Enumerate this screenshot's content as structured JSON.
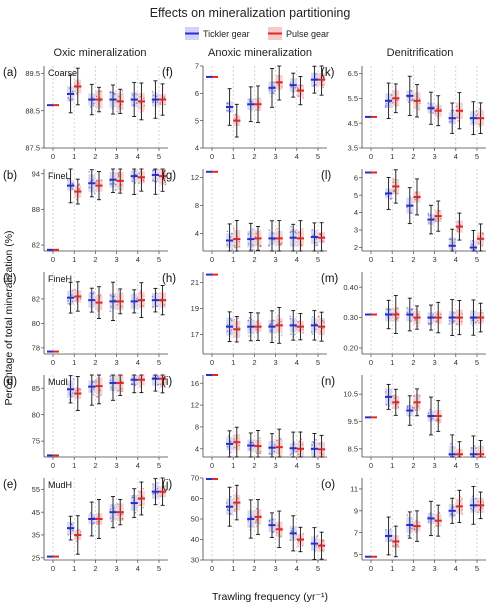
{
  "figure": {
    "title": "Effects on mineralization partitioning",
    "legend": [
      {
        "label": "Tickler gear",
        "color": "#2b2bd6"
      },
      {
        "label": "Pulse gear",
        "color": "#e0262a"
      }
    ],
    "column_titles": [
      "Oxic mineralization",
      "Anoxic mineralization",
      "Denitrification"
    ],
    "row_labels": [
      "Coarse",
      "FineL",
      "FineH",
      "MudL",
      "MudH"
    ],
    "xlabel": "Trawling frequency (yr⁻¹)",
    "ylabel": "Percentage of total mineralization (%)"
  },
  "chart_data": [
    {
      "panel": "(a)",
      "row": "Coarse",
      "column": "Oxic mineralization",
      "type": "box",
      "ylim": [
        87.5,
        89.7
      ],
      "yticks": [
        "87.5",
        "88.5",
        "89.5"
      ],
      "xticks": [
        "0",
        "1",
        "2",
        "3",
        "4",
        "5"
      ],
      "baseline": 88.65,
      "tickler": [
        88.95,
        88.8,
        88.8,
        88.8,
        88.8
      ],
      "pulse": [
        89.15,
        88.8,
        88.75,
        88.75,
        88.8
      ]
    },
    {
      "panel": "(f)",
      "row": "Coarse",
      "column": "Anoxic mineralization",
      "type": "box",
      "ylim": [
        4,
        7
      ],
      "yticks": [
        "4",
        "5",
        "6",
        "7"
      ],
      "xticks": [
        "0",
        "1",
        "2",
        "3",
        "4",
        "5"
      ],
      "baseline": 6.6,
      "tickler": [
        5.5,
        5.6,
        6.2,
        6.3,
        6.5
      ],
      "pulse": [
        5.0,
        5.6,
        6.4,
        6.1,
        6.5
      ]
    },
    {
      "panel": "(k)",
      "row": "Coarse",
      "column": "Denitrification",
      "type": "box",
      "ylim": [
        3.5,
        6.8
      ],
      "yticks": [
        "3.5",
        "4.5",
        "5.5",
        "6.5"
      ],
      "xticks": [
        "0",
        "1",
        "2",
        "3",
        "4",
        "5"
      ],
      "baseline": 4.75,
      "tickler": [
        5.4,
        5.6,
        5.1,
        4.7,
        4.7
      ],
      "pulse": [
        5.5,
        5.4,
        5.0,
        5.0,
        4.7
      ]
    },
    {
      "panel": "(b)",
      "row": "FineL",
      "column": "Oxic mineralization",
      "type": "box",
      "ylim": [
        81,
        94.8
      ],
      "yticks": [
        "82",
        "88",
        "94"
      ],
      "xticks": [
        "0",
        "1",
        "2",
        "3",
        "4",
        "5"
      ],
      "baseline": 81.2,
      "tickler": [
        92.0,
        92.4,
        93.0,
        93.6,
        93.8
      ],
      "pulse": [
        91.0,
        92.0,
        92.8,
        93.4,
        93.6
      ]
    },
    {
      "panel": "(g)",
      "row": "FineL",
      "column": "Anoxic mineralization",
      "type": "box",
      "ylim": [
        1.5,
        13.2
      ],
      "yticks": [
        "4",
        "8",
        "12"
      ],
      "xticks": [
        "0",
        "1",
        "2",
        "3",
        "4",
        "5"
      ],
      "baseline": 12.8,
      "tickler": [
        3.0,
        3.2,
        3.3,
        3.4,
        3.5
      ],
      "pulse": [
        3.2,
        3.3,
        3.3,
        3.3,
        3.4
      ]
    },
    {
      "panel": "(l)",
      "row": "FineL",
      "column": "Denitrification",
      "type": "box",
      "ylim": [
        1.8,
        6.5
      ],
      "yticks": [
        "2",
        "3",
        "4",
        "5",
        "6"
      ],
      "xticks": [
        "0",
        "1",
        "2",
        "3",
        "4",
        "5"
      ],
      "baseline": 6.3,
      "tickler": [
        5.1,
        4.4,
        3.6,
        2.1,
        2.0
      ],
      "pulse": [
        5.5,
        4.9,
        3.8,
        3.2,
        2.5
      ]
    },
    {
      "panel": "(c)",
      "row": "FineH",
      "column": "Oxic mineralization",
      "type": "box",
      "ylim": [
        77.5,
        84.2
      ],
      "yticks": [
        "78",
        "80",
        "82"
      ],
      "xticks": [
        "0",
        "1",
        "2",
        "3",
        "4",
        "5"
      ],
      "baseline": 77.7,
      "tickler": [
        82.1,
        81.9,
        81.8,
        81.8,
        81.9
      ],
      "pulse": [
        82.2,
        81.7,
        81.8,
        81.9,
        81.9
      ]
    },
    {
      "panel": "(h)",
      "row": "FineH",
      "column": "Anoxic mineralization",
      "type": "box",
      "ylim": [
        15.5,
        21.8
      ],
      "yticks": [
        "17",
        "19",
        "21"
      ],
      "xticks": [
        "0",
        "1",
        "2",
        "3",
        "4",
        "5"
      ],
      "baseline": 21.6,
      "tickler": [
        17.6,
        17.6,
        17.6,
        17.7,
        17.7
      ],
      "pulse": [
        17.4,
        17.6,
        17.7,
        17.6,
        17.6
      ]
    },
    {
      "panel": "(m)",
      "row": "FineH",
      "column": "Denitrification",
      "type": "box",
      "ylim": [
        0.18,
        0.45
      ],
      "yticks": [
        "0.20",
        "0.30",
        "0.40"
      ],
      "xticks": [
        "0",
        "1",
        "2",
        "3",
        "4",
        "5"
      ],
      "baseline": 0.31,
      "tickler": [
        0.31,
        0.31,
        0.3,
        0.3,
        0.3
      ],
      "pulse": [
        0.31,
        0.3,
        0.3,
        0.3,
        0.3
      ]
    },
    {
      "panel": "(d)",
      "row": "MudL",
      "column": "Oxic mineralization",
      "type": "box",
      "ylim": [
        72,
        87.5
      ],
      "yticks": [
        "75",
        "80",
        "85"
      ],
      "xticks": [
        "0",
        "1",
        "2",
        "3",
        "4",
        "5"
      ],
      "baseline": 72.3,
      "tickler": [
        84.8,
        85.3,
        86.0,
        86.6,
        86.8
      ],
      "pulse": [
        84.0,
        85.4,
        86.0,
        86.6,
        86.8
      ]
    },
    {
      "panel": "(i)",
      "row": "MudL",
      "column": "Anoxic mineralization",
      "type": "box",
      "ylim": [
        2.5,
        17.5
      ],
      "yticks": [
        "4",
        "8",
        "12",
        "16"
      ],
      "xticks": [
        "0",
        "1",
        "2",
        "3",
        "4",
        "5"
      ],
      "baseline": 17.5,
      "tickler": [
        4.9,
        4.6,
        4.2,
        4.1,
        4.0
      ],
      "pulse": [
        5.2,
        4.5,
        4.3,
        4.0,
        3.9
      ]
    },
    {
      "panel": "(n)",
      "row": "MudL",
      "column": "Denitrification",
      "type": "box",
      "ylim": [
        8.2,
        11.2
      ],
      "yticks": [
        "8.5",
        "9.5",
        "10.5"
      ],
      "xticks": [
        "0",
        "1",
        "2",
        "3",
        "4",
        "5"
      ],
      "baseline": 9.65,
      "tickler": [
        10.4,
        9.9,
        9.7,
        8.3,
        8.3
      ],
      "pulse": [
        10.2,
        10.2,
        9.7,
        8.3,
        8.3
      ]
    },
    {
      "panel": "(e)",
      "row": "MudH",
      "column": "Oxic mineralization",
      "type": "box",
      "ylim": [
        24,
        60
      ],
      "yticks": [
        "25",
        "35",
        "45",
        "55"
      ],
      "xticks": [
        "0",
        "1",
        "2",
        "3",
        "4",
        "5"
      ],
      "baseline": 25.5,
      "tickler": [
        38,
        42,
        45,
        49,
        54
      ],
      "pulse": [
        35,
        42,
        45,
        51,
        54
      ]
    },
    {
      "panel": "(j)",
      "row": "MudH",
      "column": "Anoxic mineralization",
      "type": "box",
      "ylim": [
        30,
        70
      ],
      "yticks": [
        "30",
        "40",
        "50",
        "60",
        "70"
      ],
      "xticks": [
        "0",
        "1",
        "2",
        "3",
        "4",
        "5"
      ],
      "baseline": 69.5,
      "tickler": [
        56,
        50,
        47,
        43,
        38
      ],
      "pulse": [
        58,
        51,
        45,
        40,
        37
      ]
    },
    {
      "panel": "(o)",
      "row": "MudH",
      "column": "Denitrification",
      "type": "box",
      "ylim": [
        4.5,
        12
      ],
      "yticks": [
        "5",
        "7",
        "9",
        "11"
      ],
      "xticks": [
        "0",
        "1",
        "2",
        "3",
        "4",
        "5"
      ],
      "baseline": 4.8,
      "tickler": [
        6.7,
        7.7,
        8.3,
        9.0,
        9.5
      ],
      "pulse": [
        6.2,
        7.6,
        8.1,
        9.4,
        9.5
      ]
    }
  ]
}
